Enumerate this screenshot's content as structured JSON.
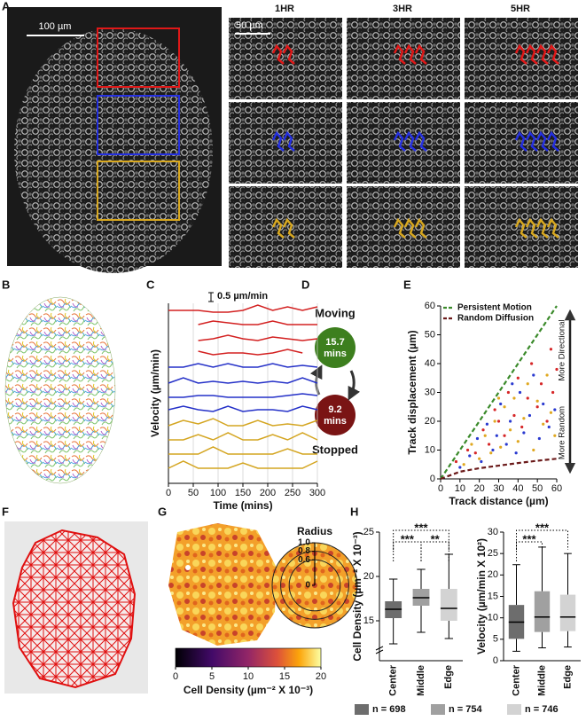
{
  "panel_labels": [
    "A",
    "B",
    "C",
    "D",
    "E",
    "F",
    "G",
    "H"
  ],
  "panel_A": {
    "scale_bar": "100 µm",
    "inset_scale_bar": "50 µm",
    "columns": [
      "1HR",
      "3HR",
      "5HR"
    ]
  },
  "panel_D": {
    "top": "Moving",
    "moving_time": "15.7",
    "moving_unit": "mins",
    "stopped_time": "9.2",
    "stopped_unit": "mins",
    "bottom": "Stopped"
  },
  "chart_data": [
    {
      "type": "line",
      "xlabel": "Time (mins)",
      "ylabel": "Velocity (µm/min)",
      "scale_bar": {
        "value": 0.5,
        "label": "0.5 µm/min"
      },
      "xlim": [
        0,
        300
      ],
      "xticks": [
        0,
        50,
        100,
        150,
        200,
        250,
        300
      ],
      "grid": true,
      "x": [
        0,
        30,
        60,
        90,
        120,
        150,
        180,
        210,
        240,
        270,
        300
      ],
      "series": [
        {
          "color": "#d32020",
          "values": [
            0.3,
            0.3,
            0.3,
            0.2,
            0.2,
            0.3,
            0.6,
            0.3,
            0.5,
            0.3,
            0.5
          ]
        },
        {
          "color": "#d32020",
          "values": [
            null,
            null,
            0.3,
            0.5,
            0.4,
            0.3,
            0.3,
            0.5,
            0.3,
            0.3,
            0.3
          ]
        },
        {
          "color": "#d32020",
          "values": [
            null,
            null,
            0.2,
            0.3,
            0.5,
            0.3,
            0.2,
            0.4,
            0.3,
            0.2,
            0.3
          ]
        },
        {
          "color": "#d32020",
          "values": [
            null,
            null,
            0.4,
            0.2,
            0.3,
            0.3,
            0.2,
            0.3,
            0.5,
            0.3,
            null
          ]
        },
        {
          "color": "#2430c8",
          "values": [
            0.3,
            0.3,
            0.5,
            0.3,
            0.5,
            0.3,
            0.3,
            0.5,
            0.3,
            0.4,
            0.3
          ]
        },
        {
          "color": "#2430c8",
          "values": [
            0.2,
            0.5,
            0.2,
            0.3,
            0.2,
            0.3,
            0.2,
            0.3,
            0.2,
            0.5,
            0.2
          ]
        },
        {
          "color": "#2430c8",
          "values": [
            0.2,
            0.2,
            0.3,
            0.3,
            0.2,
            0.2,
            0.2,
            0.2,
            0.3,
            0.4,
            0.3
          ]
        },
        {
          "color": "#2430c8",
          "values": [
            0.3,
            0.5,
            0.3,
            0.2,
            0.5,
            0.2,
            0.3,
            0.3,
            0.2,
            0.5,
            0.3
          ]
        },
        {
          "color": "#d4a520",
          "values": [
            0.2,
            0.5,
            0.3,
            0.6,
            0.2,
            0.2,
            0.5,
            0.2,
            0.3,
            0.2,
            0.5
          ]
        },
        {
          "color": "#d4a520",
          "values": [
            0.2,
            0.2,
            0.5,
            0.2,
            0.6,
            0.2,
            0.2,
            0.5,
            0.2,
            0.6,
            0.2
          ]
        },
        {
          "color": "#d4a520",
          "values": [
            0.2,
            0.2,
            0.2,
            0.6,
            0.2,
            0.2,
            0.2,
            0.2,
            0.5,
            0.2,
            0.2
          ]
        },
        {
          "color": "#d4a520",
          "values": [
            0.2,
            0.6,
            0.2,
            0.2,
            0.2,
            0.5,
            0.2,
            0.2,
            0.2,
            0.2,
            0.6
          ]
        }
      ]
    },
    {
      "type": "scatter",
      "xlabel": "Track distance (µm)",
      "ylabel": "Track displacement (µm)",
      "xlim": [
        0,
        60
      ],
      "ylim": [
        0,
        60
      ],
      "xticks": [
        0,
        10,
        20,
        30,
        40,
        50,
        60
      ],
      "yticks": [
        0,
        10,
        20,
        30,
        40,
        50,
        60
      ],
      "legend": "top-left",
      "series": [
        {
          "name": "Persistent Motion",
          "color": "#3a8a2a",
          "x": [
            0,
            60
          ],
          "values": [
            0,
            60
          ]
        },
        {
          "name": "Random Diffusion",
          "color": "#6b1a1a",
          "x": [
            0,
            10,
            20,
            30,
            40,
            50,
            60
          ],
          "values": [
            0,
            2.5,
            3.7,
            4.6,
            5.5,
            6.3,
            7
          ]
        }
      ],
      "points": [
        {
          "color": "#d62728",
          "x": [
            8,
            14,
            18,
            22,
            25,
            28,
            30,
            33,
            35,
            38,
            40,
            42,
            45,
            47,
            50,
            52,
            55,
            57,
            58,
            60
          ],
          "values": [
            6,
            10,
            9,
            17,
            12,
            24,
            20,
            15,
            30,
            22,
            35,
            18,
            28,
            40,
            25,
            33,
            20,
            45,
            30,
            38
          ]
        },
        {
          "color": "#2a3ad0",
          "x": [
            10,
            15,
            19,
            21,
            24,
            27,
            29,
            31,
            34,
            36,
            39,
            41,
            43,
            46,
            48,
            51,
            53,
            56,
            59,
            37
          ],
          "values": [
            4,
            8,
            14,
            6,
            19,
            10,
            15,
            26,
            12,
            20,
            9,
            30,
            16,
            22,
            36,
            14,
            26,
            18,
            24,
            33
          ]
        },
        {
          "color": "#e0a820",
          "x": [
            12,
            16,
            20,
            23,
            26,
            28,
            31,
            33,
            36,
            38,
            40,
            43,
            45,
            48,
            50,
            53,
            55,
            57,
            59,
            30
          ],
          "values": [
            5,
            12,
            7,
            15,
            9,
            20,
            11,
            25,
            17,
            28,
            13,
            21,
            33,
            10,
            27,
            19,
            36,
            23,
            15,
            28
          ]
        }
      ],
      "annotations": [
        "More Directional",
        "More Random"
      ]
    },
    {
      "type": "colorbar",
      "xlabel": "Cell Density (µm⁻² X 10⁻³)",
      "xlim": [
        0,
        20
      ],
      "xticks": [
        0,
        5,
        10,
        15,
        20
      ]
    },
    {
      "type": "radial",
      "title": "Radius",
      "rlim": [
        0,
        1
      ],
      "rticks": [
        {
          "value": 1,
          "label": "1.0"
        },
        0.8,
        0.6,
        0
      ]
    },
    {
      "type": "box",
      "ylabel": "Cell Density (µm⁻² X 10⁻³)",
      "ylim": [
        10.5,
        25
      ],
      "yticks": [
        15,
        20,
        25
      ],
      "categories": [
        "Center",
        "Middle",
        "Edge"
      ],
      "boxes": [
        {
          "color": "#6d6d6d",
          "min": 12.4,
          "q1": 15.3,
          "median": 16.3,
          "q3": 17.2,
          "max": 19.7
        },
        {
          "color": "#a0a0a0",
          "min": 13.7,
          "q1": 16.7,
          "median": 17.6,
          "q3": 18.6,
          "max": 20.8
        },
        {
          "color": "#d3d3d3",
          "min": 13.0,
          "q1": 15.0,
          "median": 16.4,
          "q3": 18.6,
          "max": 22.5
        }
      ],
      "significance": [
        {
          "label": "***",
          "between": [
            "Center",
            "Edge"
          ]
        },
        {
          "label": "***",
          "between": [
            "Center",
            "Middle"
          ]
        },
        {
          "label": "**",
          "between": [
            "Middle",
            "Edge"
          ]
        }
      ]
    },
    {
      "type": "box",
      "ylabel": "Velocity (µm/min X 10²)",
      "ylim": [
        0,
        30
      ],
      "yticks": [
        0,
        5,
        10,
        15,
        20,
        25,
        30
      ],
      "categories": [
        "Center",
        "Middle",
        "Edge"
      ],
      "boxes": [
        {
          "color": "#6d6d6d",
          "min": 2.2,
          "q1": 5.1,
          "median": 9.0,
          "q3": 13.0,
          "max": 22.4
        },
        {
          "color": "#a0a0a0",
          "min": 3.0,
          "q1": 6.7,
          "median": 10.2,
          "q3": 16.2,
          "max": 26.5
        },
        {
          "color": "#d3d3d3",
          "min": 3.2,
          "q1": 6.9,
          "median": 10.2,
          "q3": 15.4,
          "max": 25.0
        }
      ],
      "significance": [
        {
          "label": "***",
          "between": [
            "Center",
            "Edge"
          ]
        },
        {
          "label": "***",
          "between": [
            "Center",
            "Middle"
          ]
        }
      ]
    }
  ],
  "panel_H_legend": [
    "n = 698",
    "n = 754",
    "n = 746"
  ]
}
